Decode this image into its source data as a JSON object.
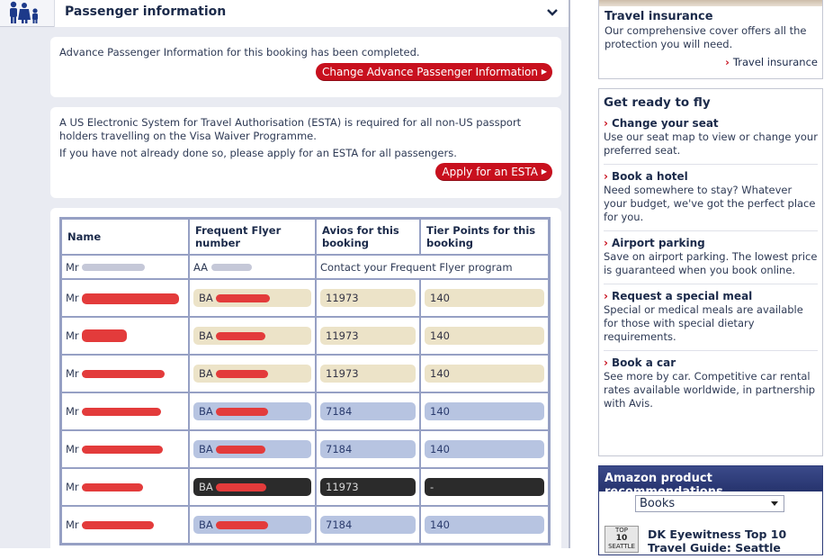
{
  "passenger_info": {
    "title": "Passenger information",
    "api_text": "Advance Passenger Information for this booking has been completed.",
    "api_button": "Change Advance Passenger Information",
    "esta_text_1": "A US Electronic System for Travel Authorisation (ESTA) is required for all non-US passport holders travelling on the Visa Waiver Programme.",
    "esta_text_2": "If you have not already done so, please apply for an ESTA for all passengers.",
    "esta_button": "Apply for an ESTA"
  },
  "table": {
    "headers": [
      "Name",
      "Frequent Flyer number",
      "Avios for this booking",
      "Tier Points for this booking"
    ],
    "rows": [
      {
        "title": "Mr",
        "ff": "AA",
        "contact": "Contact your Frequent Flyer program",
        "style": "plain"
      },
      {
        "title": "Mr",
        "ff": "BA",
        "avios": "11973",
        "tier": "140",
        "style": "tan"
      },
      {
        "title": "Mr",
        "ff": "BA",
        "avios": "11973",
        "tier": "140",
        "style": "tan"
      },
      {
        "title": "Mr",
        "ff": "BA",
        "avios": "11973",
        "tier": "140",
        "style": "tan"
      },
      {
        "title": "Mr",
        "ff": "BA",
        "avios": "7184",
        "tier": "140",
        "style": "blue"
      },
      {
        "title": "Mr",
        "ff": "BA",
        "avios": "7184",
        "tier": "140",
        "style": "blue"
      },
      {
        "title": "Mr",
        "ff": "BA",
        "avios": "11973",
        "tier": "-",
        "style": "dark"
      },
      {
        "title": "Mr",
        "ff": "BA",
        "avios": "7184",
        "tier": "140",
        "style": "blue"
      }
    ]
  },
  "travel_insurance": {
    "title": "Travel insurance",
    "text": "Our comprehensive cover offers all the protection you will need.",
    "link": "Travel insurance"
  },
  "get_ready": {
    "title": "Get ready to fly",
    "items": [
      {
        "title": "Change your seat",
        "text": "Use our seat map to view or change your preferred seat."
      },
      {
        "title": "Book a hotel",
        "text": "Need somewhere to stay? Whatever your budget, we've got the perfect place for you."
      },
      {
        "title": "Airport parking",
        "text": "Save on airport parking. The lowest price is guaranteed when you book online."
      },
      {
        "title": "Request a special meal",
        "text": "Special or medical meals are available for those with special dietary requirements."
      },
      {
        "title": "Book a car",
        "text": "See more by car. Competitive car rental rates available worldwide, in partnership with Avis."
      }
    ]
  },
  "amazon": {
    "title": "Amazon product recommendations",
    "select_value": "Books",
    "product_title": "DK Eyewitness Top 10 Travel Guide: Seattle",
    "thumb_text_1": "TOP",
    "thumb_text_2": "10",
    "thumb_text_3": "SEATTLE"
  },
  "colors": {
    "accent_red": "#c8101e",
    "navy": "#1b2a4a",
    "pill_tan": "#ece3c8",
    "pill_blue": "#b7c4e1",
    "pill_dark": "#2b2b2b"
  },
  "icons": [
    "family-icon",
    "chevron-down-icon",
    "chevron-right-icon"
  ]
}
